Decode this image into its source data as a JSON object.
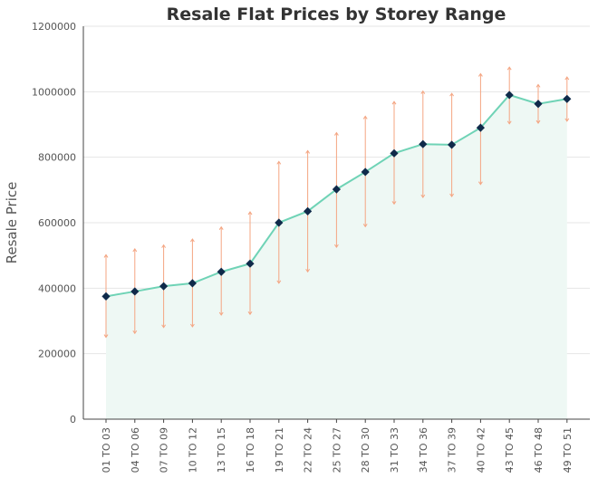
{
  "chart_data": {
    "type": "line",
    "title": "Resale Flat Prices by Storey Range",
    "xlabel": "",
    "ylabel": "Resale Price",
    "ylim": [
      0,
      1200000
    ],
    "yticks": [
      0,
      200000,
      400000,
      600000,
      800000,
      1000000,
      1200000
    ],
    "ytick_labels": [
      "0",
      "200000",
      "400000",
      "600000",
      "800000",
      "1000000",
      "1200000"
    ],
    "grid": "horizontal",
    "categories": [
      "01 TO 03",
      "04 TO 06",
      "07 TO 09",
      "10 TO 12",
      "13 TO 15",
      "16 TO 18",
      "19 TO 21",
      "22 TO 24",
      "25 TO 27",
      "28 TO 30",
      "31 TO 33",
      "34 TO 36",
      "37 TO 39",
      "40 TO 42",
      "43 TO 45",
      "46 TO 48",
      "49 TO 51"
    ],
    "series": [
      {
        "values": [
          375000,
          390000,
          406000,
          415000,
          450000,
          475000,
          600000,
          635000,
          702000,
          755000,
          812000,
          840000,
          838000,
          890000,
          990000,
          963000,
          978000
        ],
        "error_low": [
          250000,
          262000,
          280000,
          282000,
          318000,
          320000,
          415000,
          450000,
          525000,
          588000,
          657000,
          677000,
          680000,
          717000,
          902000,
          904000,
          910000
        ],
        "error_high": [
          502000,
          520000,
          532000,
          550000,
          587000,
          633000,
          787000,
          820000,
          875000,
          925000,
          970000,
          1002000,
          995000,
          1055000,
          1075000,
          1022000,
          1045000
        ]
      }
    ],
    "colors": {
      "line": "#6fd3b6",
      "area": "#eef8f4",
      "marker": "#0f2a4a",
      "error_bar": "#f4a582",
      "grid": "#e6e6e6",
      "axis": "#444444"
    }
  }
}
